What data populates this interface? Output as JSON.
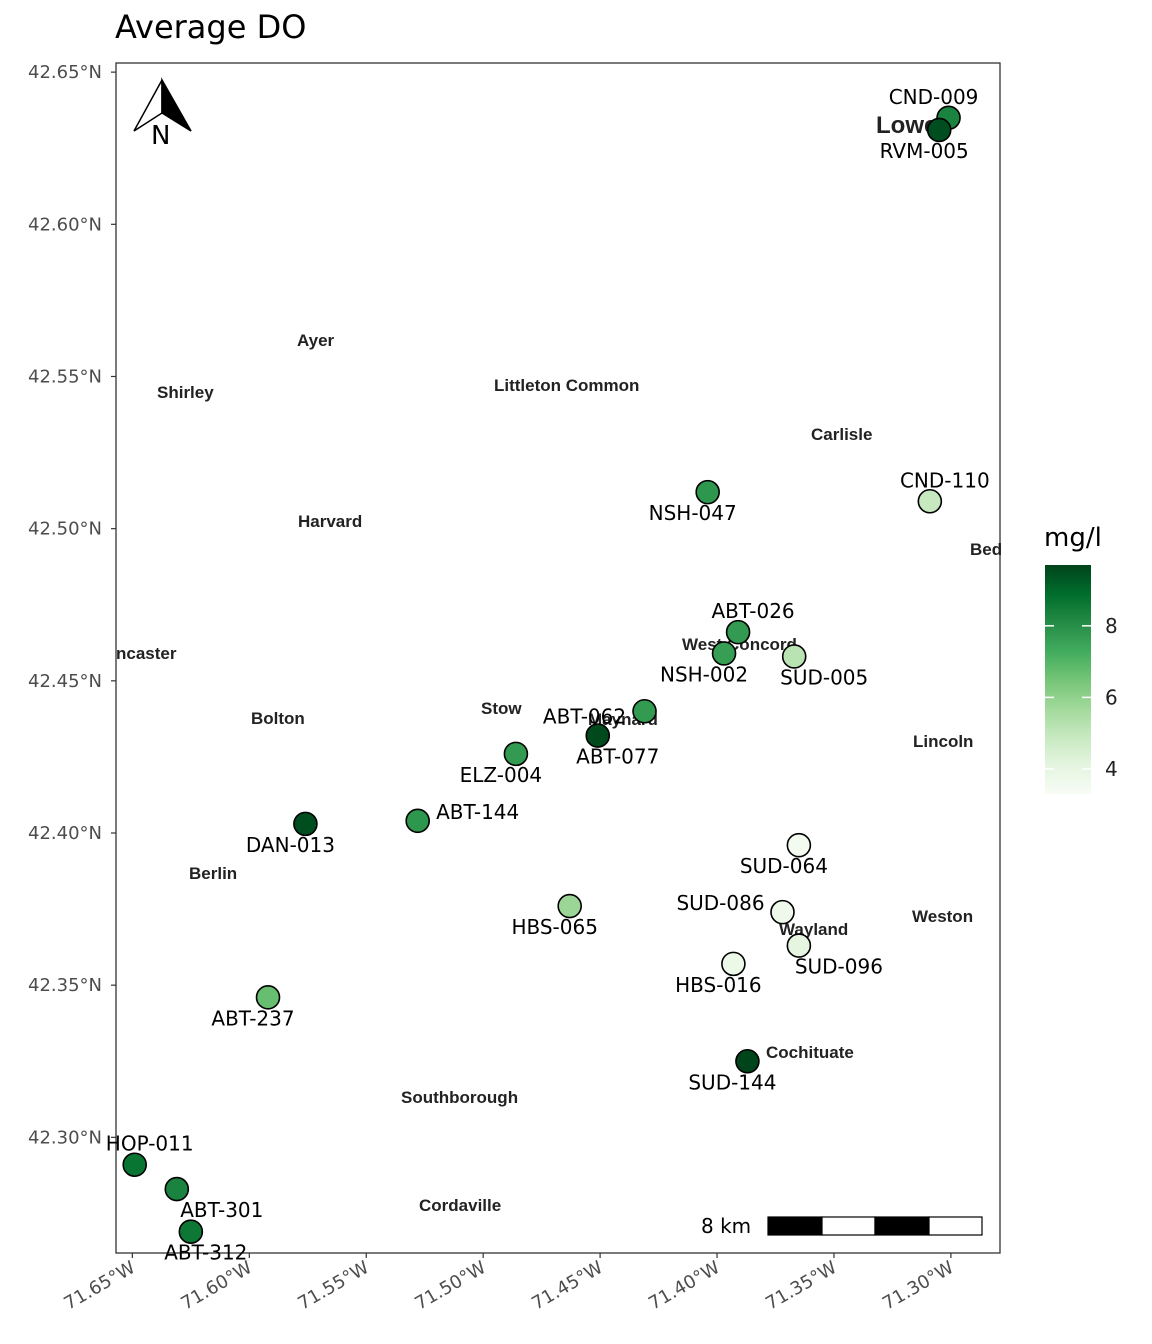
{
  "title": "Average DO",
  "legend": {
    "title": "mg/l",
    "ticks": [
      4,
      6,
      8
    ],
    "range": [
      3.3,
      9.7
    ],
    "colors": [
      "#f7fcf5",
      "#e5f5e0",
      "#c7e9c0",
      "#a1d99b",
      "#74c476",
      "#41ab5d",
      "#238b45",
      "#006d2c",
      "#00441b"
    ]
  },
  "scale_bar": {
    "label": "8 km"
  },
  "north_arrow": {
    "label": "N"
  },
  "axes": {
    "lat_ticks": [
      "42.30°N",
      "42.35°N",
      "42.40°N",
      "42.45°N",
      "42.50°N",
      "42.55°N",
      "42.60°N",
      "42.65°N"
    ],
    "lon_ticks": [
      "71.65°W",
      "71.60°W",
      "71.55°W",
      "71.50°W",
      "71.45°W",
      "71.40°W",
      "71.35°W",
      "71.30°W"
    ]
  },
  "towns": [
    "Ayer",
    "Shirley",
    "Littleton Common",
    "Carlisle",
    "Harvard",
    "Bed",
    "ncaster",
    "West Concord",
    "Bolton",
    "Stow",
    "Maynard",
    "Lincoln",
    "Berlin",
    "Wayland",
    "Weston",
    "Cochituate",
    "Southborough",
    "Cordaville",
    "Lowell"
  ],
  "chart_data": {
    "type": "scatter",
    "title": "Average DO",
    "color_label": "mg/l",
    "xlim": [
      -71.657,
      -71.279
    ],
    "ylim": [
      42.262,
      42.653
    ],
    "sites": [
      {
        "name": "CND-009",
        "lon": -71.301,
        "lat": 42.635,
        "do": 8.3
      },
      {
        "name": "RVM-005",
        "lon": -71.305,
        "lat": 42.631,
        "do": 9.5
      },
      {
        "name": "CND-110",
        "lon": -71.309,
        "lat": 42.509,
        "do": 4.9
      },
      {
        "name": "NSH-047",
        "lon": -71.404,
        "lat": 42.512,
        "do": 7.8
      },
      {
        "name": "ABT-026",
        "lon": -71.391,
        "lat": 42.466,
        "do": 7.7
      },
      {
        "name": "NSH-002",
        "lon": -71.397,
        "lat": 42.459,
        "do": 7.6
      },
      {
        "name": "SUD-005",
        "lon": -71.367,
        "lat": 42.458,
        "do": 5.2
      },
      {
        "name": "ABT-062",
        "lon": -71.431,
        "lat": 42.44,
        "do": 7.7
      },
      {
        "name": "ABT-077",
        "lon": -71.451,
        "lat": 42.432,
        "do": 9.6
      },
      {
        "name": "ELZ-004",
        "lon": -71.486,
        "lat": 42.426,
        "do": 7.7
      },
      {
        "name": "ABT-144",
        "lon": -71.528,
        "lat": 42.404,
        "do": 7.8
      },
      {
        "name": "DAN-013",
        "lon": -71.576,
        "lat": 42.403,
        "do": 9.5
      },
      {
        "name": "SUD-064",
        "lon": -71.365,
        "lat": 42.396,
        "do": 3.5
      },
      {
        "name": "HBS-065",
        "lon": -71.463,
        "lat": 42.376,
        "do": 5.8
      },
      {
        "name": "SUD-086",
        "lon": -71.372,
        "lat": 42.374,
        "do": 3.7
      },
      {
        "name": "SUD-096",
        "lon": -71.365,
        "lat": 42.363,
        "do": 4.1
      },
      {
        "name": "HBS-016",
        "lon": -71.393,
        "lat": 42.357,
        "do": 3.8
      },
      {
        "name": "ABT-237",
        "lon": -71.592,
        "lat": 42.346,
        "do": 6.7
      },
      {
        "name": "SUD-144",
        "lon": -71.387,
        "lat": 42.325,
        "do": 9.7
      },
      {
        "name": "HOP-011",
        "lon": -71.649,
        "lat": 42.291,
        "do": 8.7
      },
      {
        "name": "ABT-301",
        "lon": -71.631,
        "lat": 42.283,
        "do": 8.3
      },
      {
        "name": "ABT-312",
        "lon": -71.625,
        "lat": 42.269,
        "do": 8.6
      }
    ]
  }
}
